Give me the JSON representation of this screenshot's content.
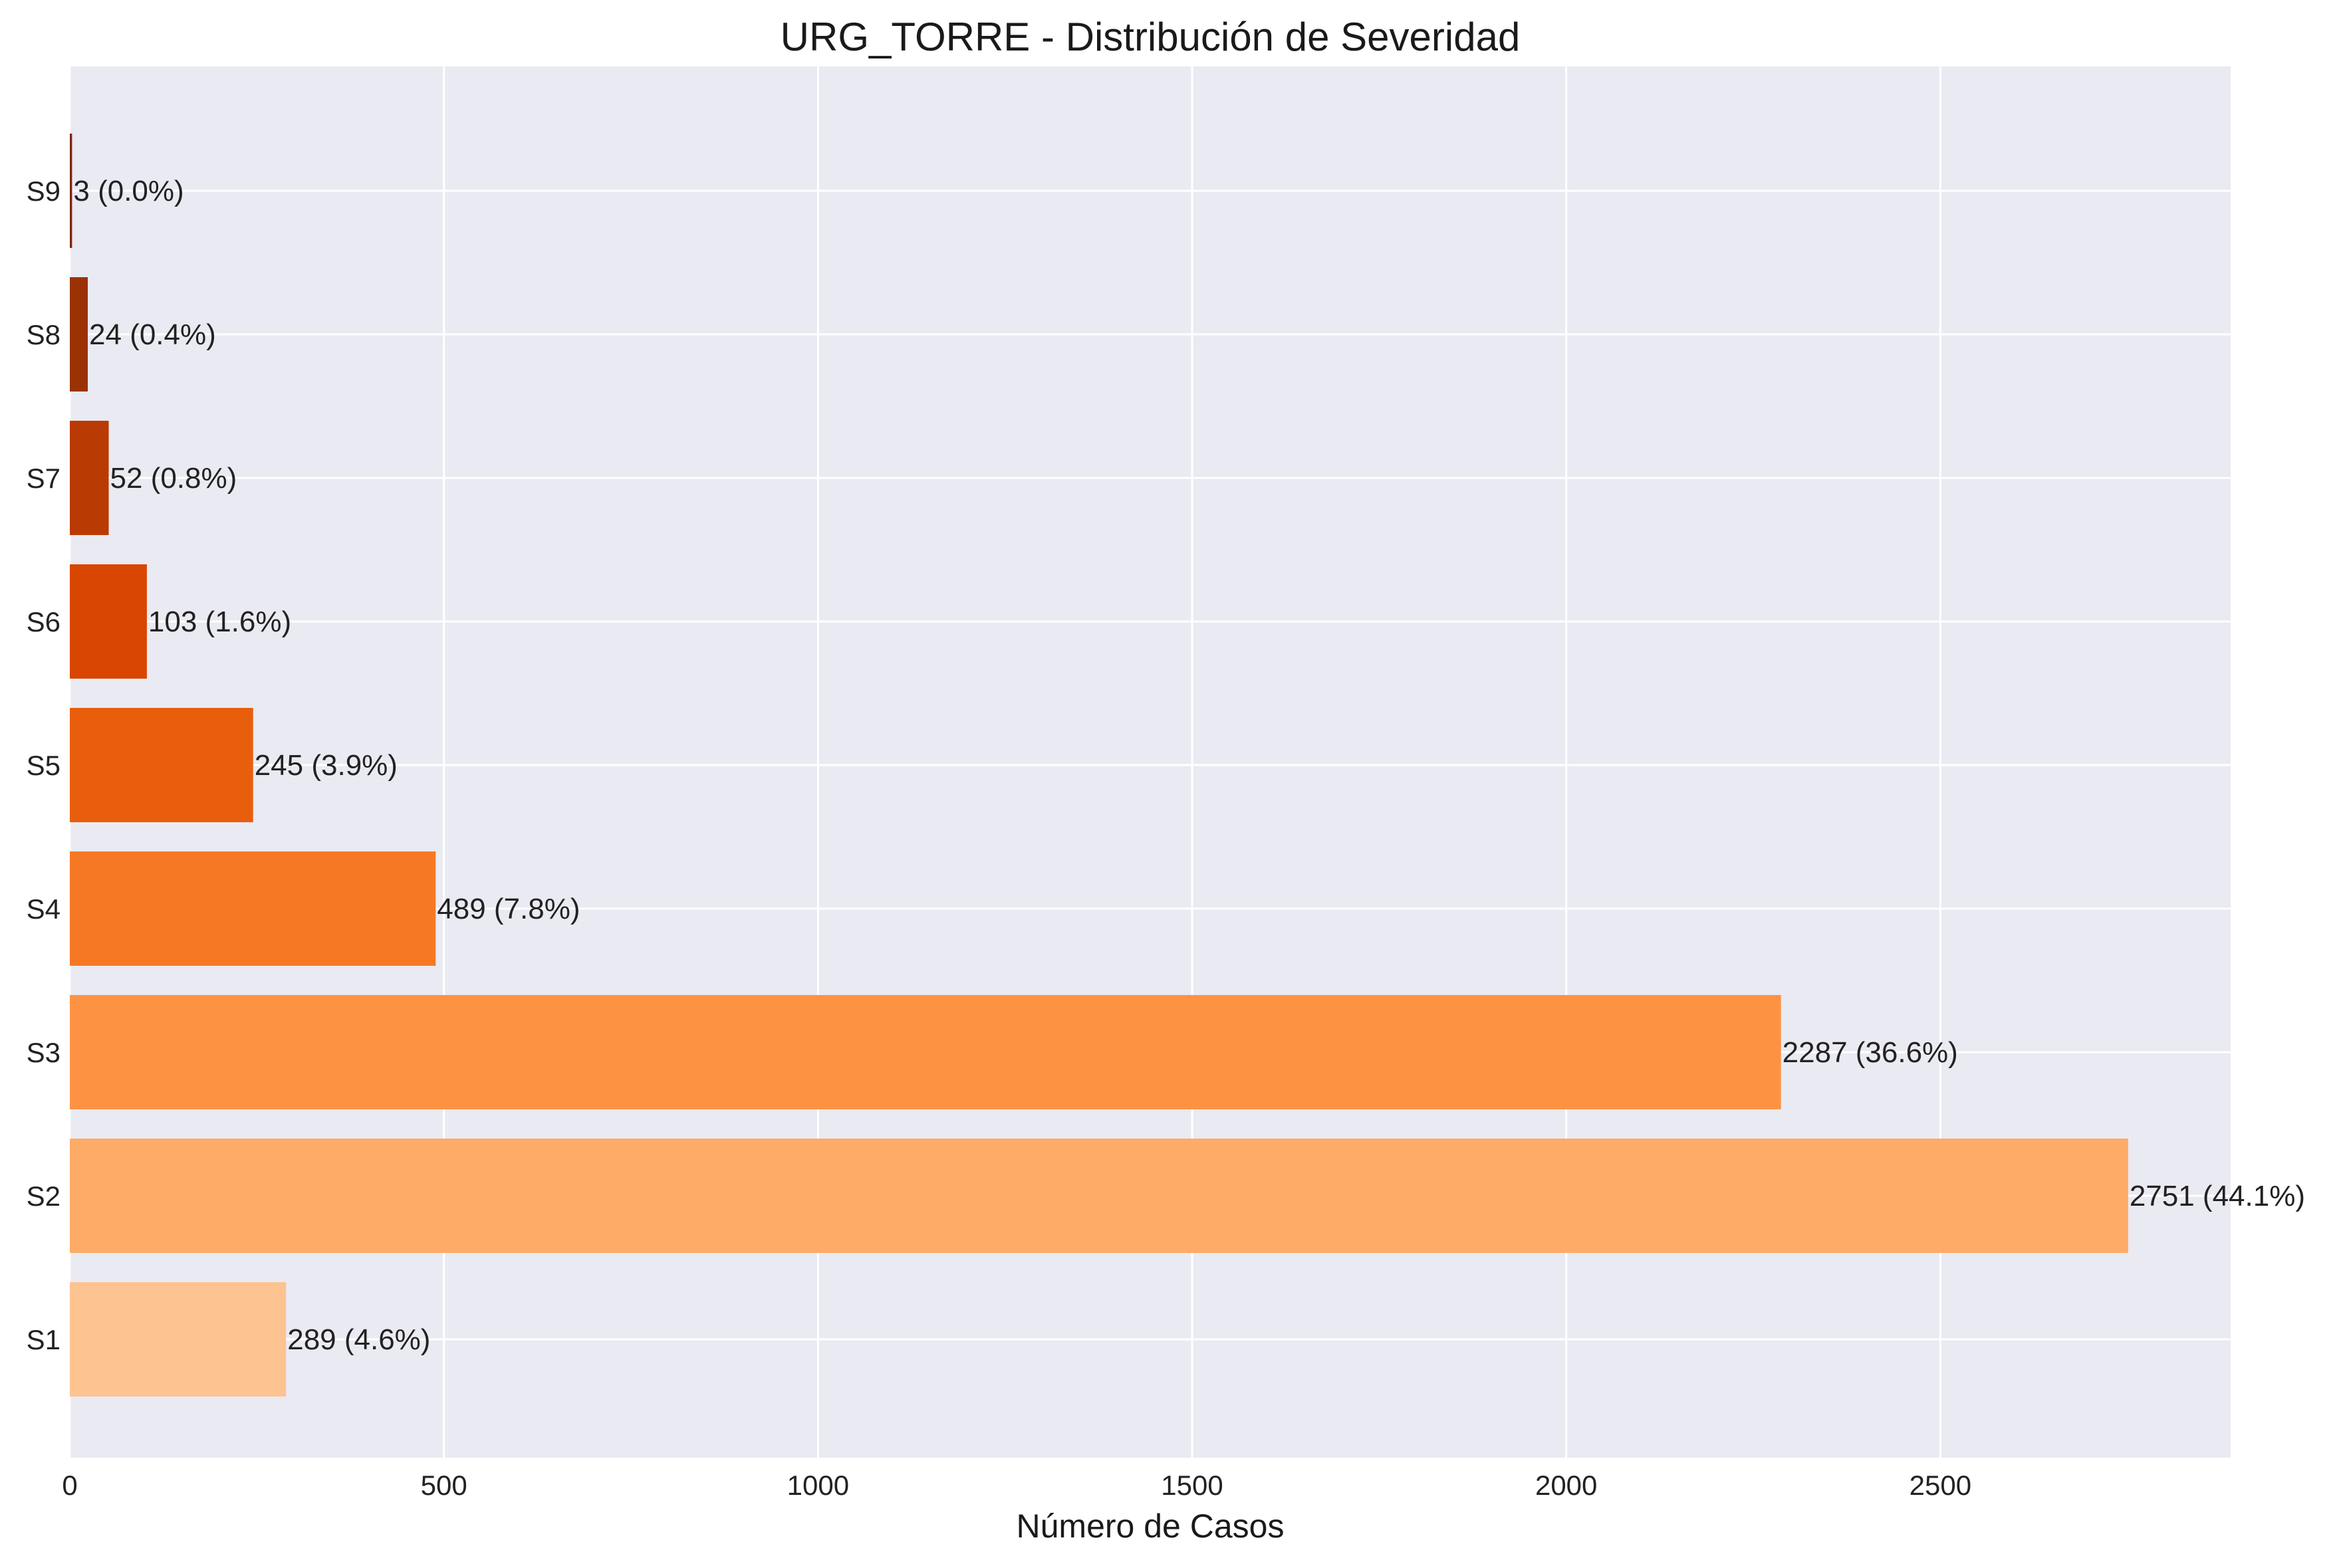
{
  "chart_data": {
    "type": "bar",
    "orientation": "horizontal",
    "title": "URG_TORRE - Distribución de Severidad",
    "xlabel": "Número de Casos",
    "ylabel": "",
    "xlim": [
      0,
      2888
    ],
    "grid": true,
    "categories": [
      "S1",
      "S2",
      "S3",
      "S4",
      "S5",
      "S6",
      "S7",
      "S8",
      "S9"
    ],
    "values": [
      289,
      2751,
      2287,
      489,
      245,
      103,
      52,
      24,
      3
    ],
    "data_labels": [
      "289 (4.6%)",
      "2751 (44.1%)",
      "2287 (36.6%)",
      "489 (7.8%)",
      "245 (3.9%)",
      "103 (1.6%)",
      "52 (0.8%)",
      "24 (0.4%)",
      "3 (0.0%)"
    ],
    "bar_colors": [
      "#fdc391",
      "#fdab67",
      "#fd9243",
      "#f67824",
      "#e95e0d",
      "#d84501",
      "#b93a02",
      "#9b3203",
      "#7f2704"
    ],
    "x_ticks": [
      0,
      500,
      1000,
      1500,
      2000,
      2500
    ],
    "x_tick_labels": [
      "0",
      "500",
      "1000",
      "1500",
      "2000",
      "2500"
    ],
    "background_color": "#eaeaf2",
    "grid_color": "#ffffff"
  }
}
